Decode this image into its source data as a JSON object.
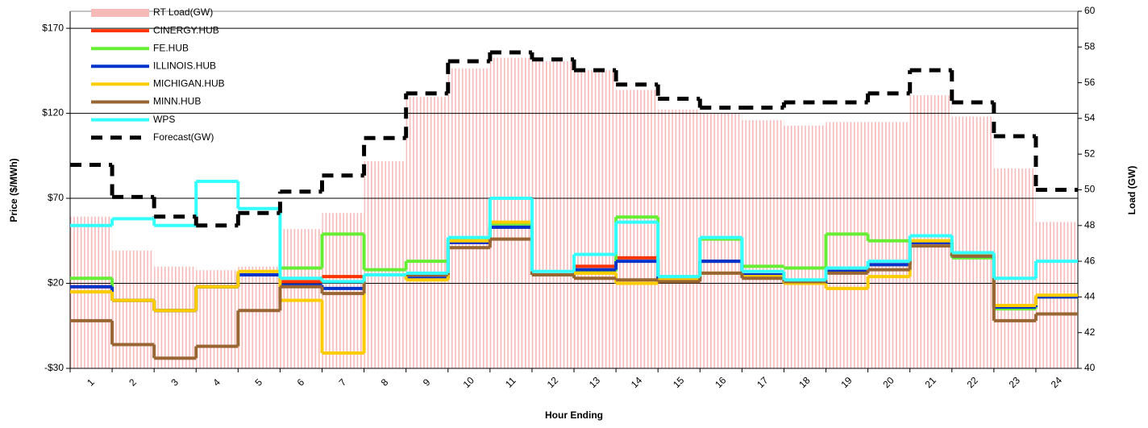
{
  "chart_data": {
    "type": "line",
    "x_label": "Hour Ending",
    "y_label": "Price ($/MWh)",
    "y2_label": "Load (GW)",
    "categories": [
      "1",
      "2",
      "3",
      "4",
      "5",
      "6",
      "7",
      "8",
      "9",
      "10",
      "11",
      "12",
      "13",
      "14",
      "15",
      "16",
      "17",
      "18",
      "19",
      "20",
      "21",
      "22",
      "23",
      "24"
    ],
    "ylim": [
      -30,
      180
    ],
    "yticks": [
      {
        "value": -30,
        "label": "-$30"
      },
      {
        "value": 20,
        "label": "$20"
      },
      {
        "value": 70,
        "label": "$70"
      },
      {
        "value": 120,
        "label": "$120"
      },
      {
        "value": 170,
        "label": "$170"
      }
    ],
    "y2lim": [
      40,
      60
    ],
    "y2ticks": [
      40,
      42,
      44,
      46,
      48,
      50,
      52,
      54,
      56,
      58,
      60
    ],
    "grid": true,
    "legend": "upper-left",
    "series": [
      {
        "name": "RT Load(GW)",
        "color": "#f7b8b8",
        "axis": "y2",
        "style": "bars",
        "values": [
          48.5,
          46.6,
          45.7,
          45.5,
          45.7,
          47.8,
          48.7,
          51.6,
          55.2,
          56.8,
          57.4,
          57.2,
          56.7,
          55.6,
          54.5,
          54.3,
          53.9,
          53.6,
          53.8,
          53.8,
          55.3,
          54.1,
          51.2,
          48.2
        ]
      },
      {
        "name": "CINERGY.HUB",
        "color": "#ff3300",
        "style": "step",
        "values": [
          18,
          10,
          4,
          18,
          25,
          21,
          24,
          25,
          23,
          44,
          53,
          25,
          30,
          35,
          22,
          33,
          25,
          20,
          27,
          31,
          44,
          36,
          6,
          12
        ]
      },
      {
        "name": "FE.HUB",
        "color": "#66ee33",
        "style": "step",
        "values": [
          23,
          10,
          4,
          18,
          25,
          29,
          49,
          28,
          33,
          46,
          55,
          25,
          27,
          59,
          24,
          46,
          30,
          29,
          49,
          45,
          45,
          35,
          5,
          12
        ]
      },
      {
        "name": "ILLINOIS.HUB",
        "color": "#0033cc",
        "style": "step",
        "values": [
          18,
          10,
          4,
          18,
          25,
          19,
          17,
          25,
          23,
          44,
          53,
          25,
          28,
          33,
          22,
          33,
          25,
          20,
          27,
          31,
          44,
          36,
          6,
          12
        ]
      },
      {
        "name": "MICHIGAN.HUB",
        "color": "#ffcc00",
        "style": "step",
        "values": [
          15,
          10,
          4,
          18,
          27,
          10,
          -21,
          25,
          22,
          45,
          56,
          25,
          26,
          20,
          22,
          26,
          24,
          20,
          17,
          24,
          45,
          37,
          7,
          13
        ]
      },
      {
        "name": "MINN.HUB",
        "color": "#996633",
        "style": "step",
        "values": [
          -2,
          -16,
          -24,
          -17,
          4,
          18,
          14,
          25,
          25,
          41,
          46,
          25,
          23,
          22,
          21,
          26,
          23,
          21,
          26,
          28,
          42,
          36,
          -2,
          2
        ]
      },
      {
        "name": "WPS",
        "color": "#33ffff",
        "style": "step",
        "values": [
          54,
          58,
          54,
          80,
          64,
          23,
          21,
          25,
          26,
          47,
          70,
          27,
          37,
          56,
          24,
          47,
          27,
          22,
          29,
          33,
          48,
          38,
          23,
          33
        ]
      },
      {
        "name": "Forecast(GW)",
        "color": "#000000",
        "axis": "y2",
        "style": "dashed-step",
        "values": [
          51.4,
          49.6,
          48.5,
          48.0,
          48.7,
          49.9,
          50.8,
          52.9,
          55.4,
          57.2,
          57.7,
          57.3,
          56.7,
          55.9,
          55.1,
          54.6,
          54.6,
          54.9,
          54.9,
          55.4,
          56.7,
          54.9,
          53.0,
          50.0
        ]
      }
    ]
  }
}
